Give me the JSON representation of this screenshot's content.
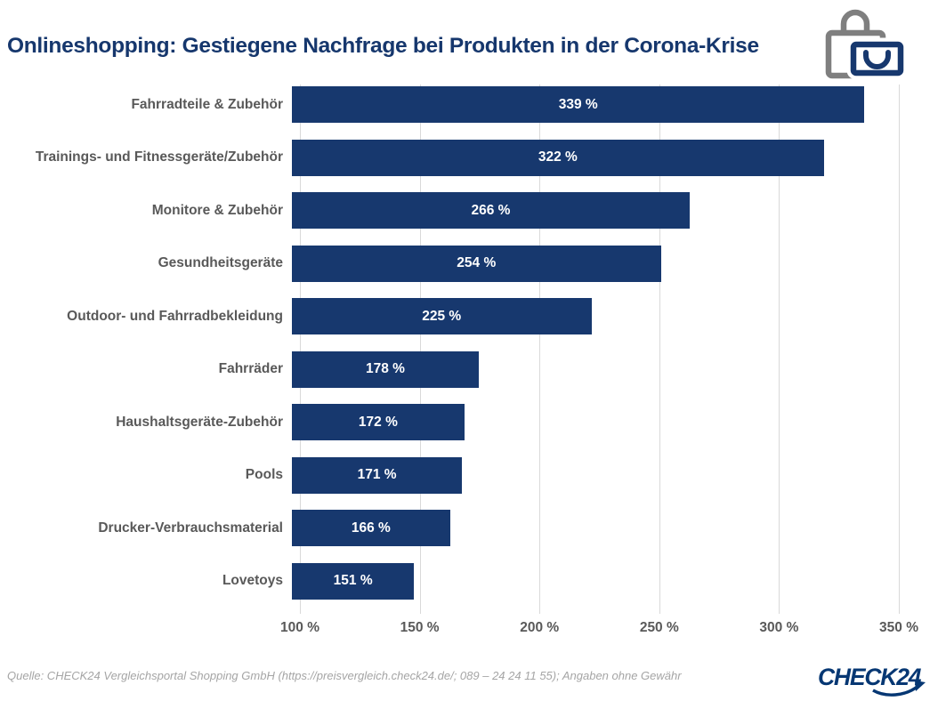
{
  "title": "Onlineshopping: Gestiegene Nachfrage bei Produkten in der Corona-Krise",
  "header_icon": "shopping-bags-icon",
  "chart_data": {
    "type": "bar",
    "orientation": "horizontal",
    "title": "Onlineshopping: Gestiegene Nachfrage bei Produkten in der Corona-Krise",
    "categories": [
      "Fahrradteile & Zubehör",
      "Trainings- und Fitnessgeräte/Zubehör",
      "Monitore & Zubehör",
      "Gesundheitsgeräte",
      "Outdoor- und Fahrradbekleidung",
      "Fahrräder",
      "Haushaltsgeräte-Zubehör",
      "Pools",
      "Drucker-Verbrauchsmaterial",
      "Lovetoys"
    ],
    "values": [
      339,
      322,
      266,
      254,
      225,
      178,
      172,
      171,
      166,
      151
    ],
    "value_labels": [
      "339 %",
      "322 %",
      "266 %",
      "254 %",
      "225 %",
      "178 %",
      "172 %",
      "171 %",
      "166 %",
      "151 %"
    ],
    "xlabel": "",
    "ylabel": "",
    "xlim": [
      100,
      350
    ],
    "x_tick_values": [
      100,
      150,
      200,
      250,
      300,
      350
    ],
    "x_ticks": [
      "100 %",
      "150 %",
      "200 %",
      "250 %",
      "300 %",
      "350 %"
    ],
    "grid": true,
    "legend": false,
    "bar_color": "#17386E",
    "grid_color": "#D9D9D9",
    "category_label_color": "#595959",
    "value_label_color": "#FFFFFF"
  },
  "footer": {
    "source": "Quelle: CHECK24 Vergleichsportal Shopping GmbH (https://preisvergleich.check24.de/; 089 – 24 24 11 55); Angaben ohne Gewähr",
    "logo_text": "CHECK24"
  },
  "colors": {
    "title": "#16376D",
    "bar": "#17386E",
    "logo": "#063773",
    "icon_gray": "#7F7F7F"
  }
}
